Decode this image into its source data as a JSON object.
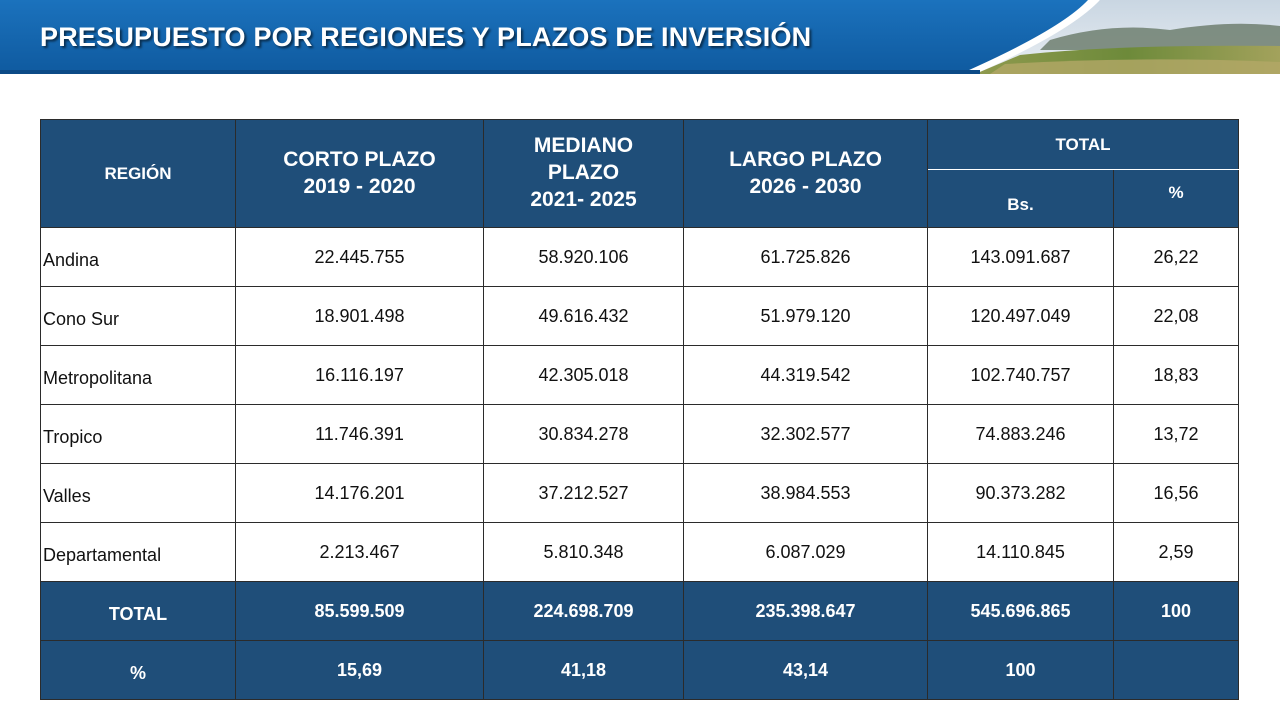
{
  "header": {
    "title": "PRESUPUESTO POR REGIONES Y PLAZOS DE INVERSIÓN",
    "colors": {
      "band": "#1565ad",
      "band_dark": "#0f4f91",
      "table_header": "#1f4e79"
    }
  },
  "table": {
    "headers": {
      "region": "REGIÓN",
      "corto": [
        "CORTO PLAZO",
        "2019 - 2020"
      ],
      "mediano": [
        "MEDIANO",
        "PLAZO",
        "2021- 2025"
      ],
      "largo": [
        "LARGO PLAZO",
        "2026 - 2030"
      ],
      "total": "TOTAL",
      "total_bs": "Bs.",
      "total_pct": "%"
    },
    "rows": [
      {
        "region": "Andina",
        "corto": "22.445.755",
        "mediano": "58.920.106",
        "largo": "61.725.826",
        "bs": "143.091.687",
        "pct": "26,22"
      },
      {
        "region": "Cono Sur",
        "corto": "18.901.498",
        "mediano": "49.616.432",
        "largo": "51.979.120",
        "bs": "120.497.049",
        "pct": "22,08"
      },
      {
        "region": "Metropolitana",
        "corto": "16.116.197",
        "mediano": "42.305.018",
        "largo": "44.319.542",
        "bs": "102.740.757",
        "pct": "18,83"
      },
      {
        "region": "Tropico",
        "corto": "11.746.391",
        "mediano": "30.834.278",
        "largo": "32.302.577",
        "bs": "74.883.246",
        "pct": "13,72"
      },
      {
        "region": "Valles",
        "corto": "14.176.201",
        "mediano": "37.212.527",
        "largo": "38.984.553",
        "bs": "90.373.282",
        "pct": "16,56"
      },
      {
        "region": "Departamental",
        "corto": "2.213.467",
        "mediano": "5.810.348",
        "largo": "6.087.029",
        "bs": "14.110.845",
        "pct": "2,59"
      }
    ],
    "total_row": {
      "label": "TOTAL",
      "corto": "85.599.509",
      "mediano": "224.698.709",
      "largo": "235.398.647",
      "bs": "545.696.865",
      "pct": "100"
    },
    "pct_row": {
      "label": "%",
      "corto": "15,69",
      "mediano": "41,18",
      "largo": "43,14",
      "bs": "100",
      "pct": ""
    }
  }
}
